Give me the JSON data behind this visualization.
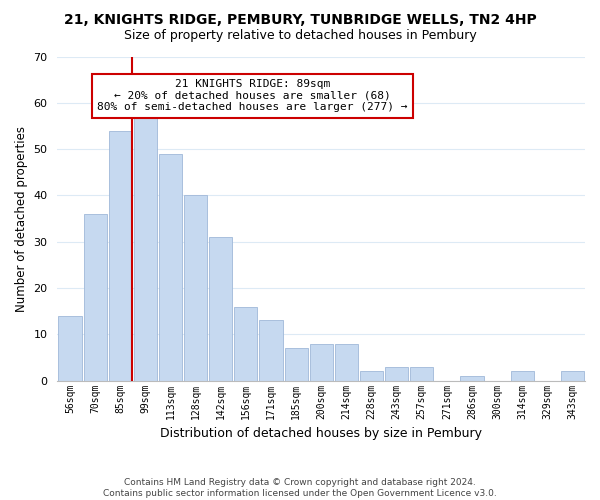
{
  "title": "21, KNIGHTS RIDGE, PEMBURY, TUNBRIDGE WELLS, TN2 4HP",
  "subtitle": "Size of property relative to detached houses in Pembury",
  "xlabel": "Distribution of detached houses by size in Pembury",
  "ylabel": "Number of detached properties",
  "bar_labels": [
    "56sqm",
    "70sqm",
    "85sqm",
    "99sqm",
    "113sqm",
    "128sqm",
    "142sqm",
    "156sqm",
    "171sqm",
    "185sqm",
    "200sqm",
    "214sqm",
    "228sqm",
    "243sqm",
    "257sqm",
    "271sqm",
    "286sqm",
    "300sqm",
    "314sqm",
    "329sqm",
    "343sqm"
  ],
  "bar_heights": [
    14,
    36,
    54,
    57,
    49,
    40,
    31,
    16,
    13,
    7,
    8,
    8,
    2,
    3,
    3,
    0,
    1,
    0,
    2,
    0,
    2
  ],
  "bar_color": "#c6d9f0",
  "bar_edge_color": "#a0b8d8",
  "vline_bar_index": 2,
  "vline_color": "#cc0000",
  "ylim": [
    0,
    70
  ],
  "yticks": [
    0,
    10,
    20,
    30,
    40,
    50,
    60,
    70
  ],
  "annotation_title": "21 KNIGHTS RIDGE: 89sqm",
  "annotation_line1": "← 20% of detached houses are smaller (68)",
  "annotation_line2": "80% of semi-detached houses are larger (277) →",
  "annotation_box_color": "#ffffff",
  "annotation_box_edge": "#cc0000",
  "footer_line1": "Contains HM Land Registry data © Crown copyright and database right 2024.",
  "footer_line2": "Contains public sector information licensed under the Open Government Licence v3.0.",
  "background_color": "#ffffff",
  "grid_color": "#ddeaf5"
}
